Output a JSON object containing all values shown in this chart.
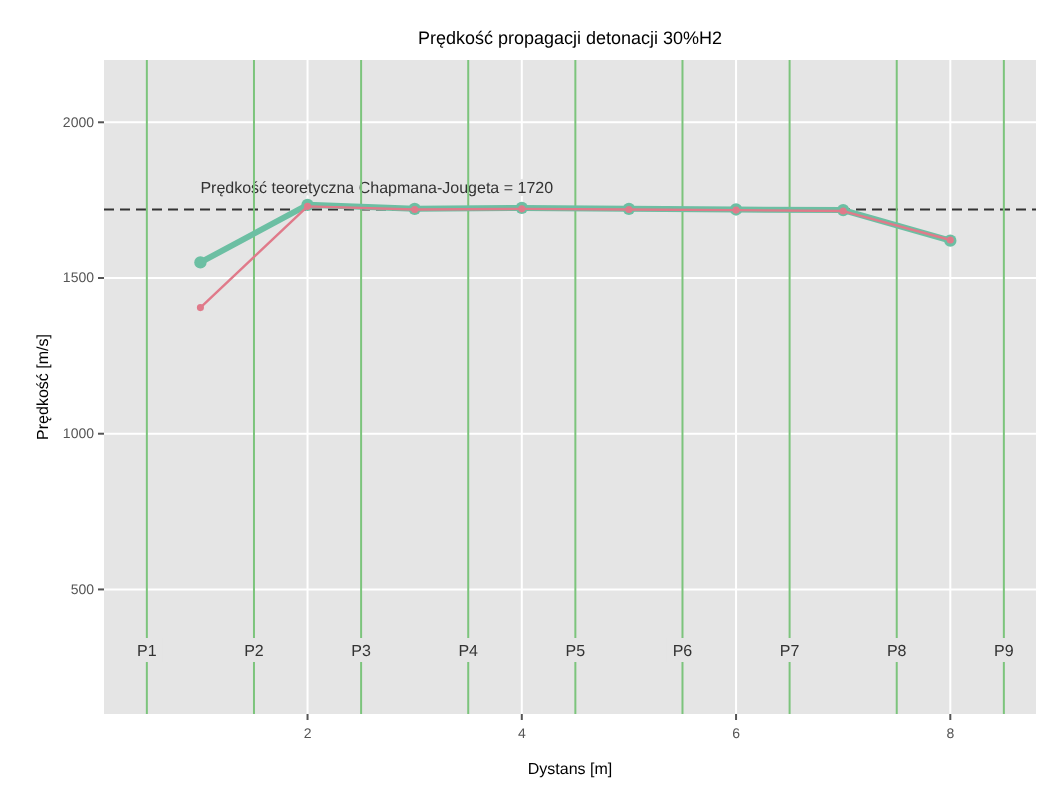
{
  "chart_data": {
    "type": "line",
    "title": "Prędkość propagacji detonacji 30%H2",
    "xlabel": "Dystans [m]",
    "ylabel": "Prędkość [m/s]",
    "x": [
      1,
      2,
      3,
      4,
      5,
      6,
      7,
      8
    ],
    "series": [
      {
        "color": "#6cbfa3",
        "values": [
          1550,
          1735,
          1722,
          1725,
          1722,
          1720,
          1718,
          1620
        ]
      },
      {
        "color": "#e07a8a",
        "values": [
          1405,
          1730,
          1720,
          1722,
          1720,
          1718,
          1715,
          1622
        ]
      }
    ],
    "xlim": [
      0.1,
      8.8
    ],
    "ylim": [
      100,
      2200
    ],
    "xticks": [
      2,
      4,
      6,
      8
    ],
    "yticks": [
      500,
      1000,
      1500,
      2000
    ],
    "grid": true,
    "marker": "circle",
    "line_style": "solid",
    "ref_lines": [
      {
        "axis": "y",
        "value": 1720,
        "label": "Prędkość teoretyczna Chapmana-Jougeta = 1720",
        "color": "#333333",
        "line_style": "dashed"
      },
      {
        "axis": "x",
        "value": 0.5,
        "label": "P1",
        "color": "#7cc47c"
      },
      {
        "axis": "x",
        "value": 1.5,
        "label": "P2",
        "color": "#7cc47c"
      },
      {
        "axis": "x",
        "value": 2.5,
        "label": "P3",
        "color": "#7cc47c"
      },
      {
        "axis": "x",
        "value": 3.5,
        "label": "P4",
        "color": "#7cc47c"
      },
      {
        "axis": "x",
        "value": 4.5,
        "label": "P5",
        "color": "#7cc47c"
      },
      {
        "axis": "x",
        "value": 5.5,
        "label": "P6",
        "color": "#7cc47c"
      },
      {
        "axis": "x",
        "value": 6.5,
        "label": "P7",
        "color": "#7cc47c"
      },
      {
        "axis": "x",
        "value": 7.5,
        "label": "P8",
        "color": "#7cc47c"
      },
      {
        "axis": "x",
        "value": 8.5,
        "label": "P9",
        "color": "#7cc47c"
      }
    ]
  }
}
